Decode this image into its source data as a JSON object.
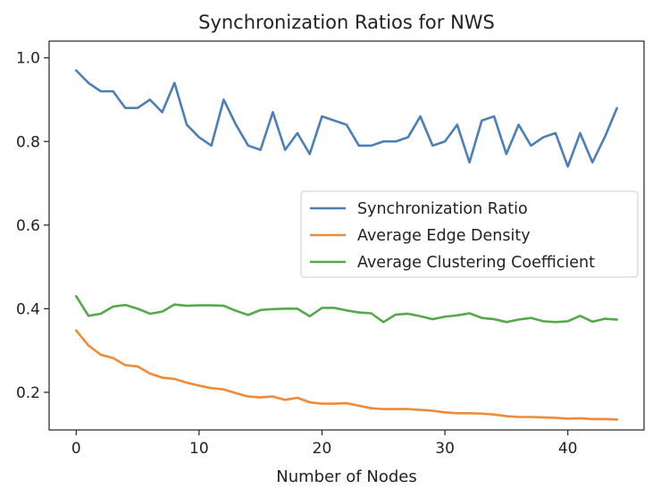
{
  "chart_data": {
    "type": "line",
    "title": "Synchronization Ratios for NWS",
    "xlabel": "Number of Nodes",
    "ylabel": "",
    "xlim": [
      -2.2,
      46.2
    ],
    "ylim": [
      0.11,
      1.04
    ],
    "xticks": [
      0,
      10,
      20,
      30,
      40
    ],
    "yticks": [
      0.2,
      0.4,
      0.6,
      0.8,
      1.0
    ],
    "xtick_labels": [
      "0",
      "10",
      "20",
      "30",
      "40"
    ],
    "ytick_labels": [
      "0.2",
      "0.4",
      "0.6",
      "0.8",
      "1.0"
    ],
    "legend_position": "center-right",
    "x": [
      0,
      1,
      2,
      3,
      4,
      5,
      6,
      7,
      8,
      9,
      10,
      11,
      12,
      13,
      14,
      15,
      16,
      17,
      18,
      19,
      20,
      21,
      22,
      23,
      24,
      25,
      26,
      27,
      28,
      29,
      30,
      31,
      32,
      33,
      34,
      35,
      36,
      37,
      38,
      39,
      40,
      41,
      42,
      43,
      44
    ],
    "series": [
      {
        "name": "Synchronization Ratio",
        "color": "#4c7fb8",
        "values": [
          0.97,
          0.94,
          0.92,
          0.92,
          0.88,
          0.88,
          0.9,
          0.87,
          0.94,
          0.84,
          0.81,
          0.79,
          0.9,
          0.84,
          0.79,
          0.78,
          0.87,
          0.78,
          0.82,
          0.77,
          0.86,
          0.85,
          0.84,
          0.79,
          0.79,
          0.8,
          0.8,
          0.81,
          0.86,
          0.79,
          0.8,
          0.84,
          0.75,
          0.85,
          0.86,
          0.77,
          0.84,
          0.79,
          0.81,
          0.82,
          0.74,
          0.82,
          0.75,
          0.81,
          0.88
        ]
      },
      {
        "name": "Average Edge Density",
        "color": "#ef8a36",
        "values": [
          0.348,
          0.312,
          0.29,
          0.282,
          0.265,
          0.262,
          0.245,
          0.235,
          0.232,
          0.223,
          0.216,
          0.21,
          0.207,
          0.198,
          0.19,
          0.188,
          0.19,
          0.182,
          0.187,
          0.176,
          0.173,
          0.173,
          0.174,
          0.168,
          0.162,
          0.16,
          0.16,
          0.16,
          0.158,
          0.156,
          0.152,
          0.15,
          0.15,
          0.149,
          0.147,
          0.143,
          0.141,
          0.141,
          0.14,
          0.139,
          0.137,
          0.138,
          0.136,
          0.136,
          0.135
        ]
      },
      {
        "name": "Average Clustering Coefficient",
        "color": "#54a94a",
        "values": [
          0.43,
          0.383,
          0.388,
          0.405,
          0.409,
          0.4,
          0.388,
          0.393,
          0.41,
          0.407,
          0.408,
          0.408,
          0.407,
          0.395,
          0.385,
          0.397,
          0.399,
          0.4,
          0.4,
          0.382,
          0.402,
          0.402,
          0.396,
          0.391,
          0.389,
          0.368,
          0.386,
          0.388,
          0.382,
          0.375,
          0.381,
          0.384,
          0.389,
          0.378,
          0.375,
          0.368,
          0.374,
          0.378,
          0.37,
          0.368,
          0.37,
          0.383,
          0.369,
          0.376,
          0.374
        ]
      }
    ]
  }
}
